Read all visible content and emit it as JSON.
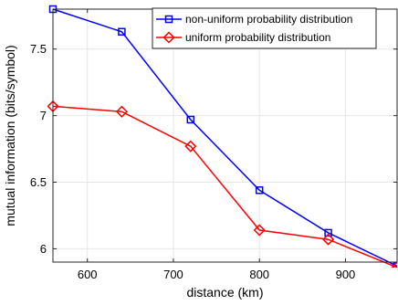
{
  "chart_data": {
    "type": "line",
    "xlabel": "distance (km)",
    "ylabel": "mutual information (bits/symbol)",
    "xlim": [
      560,
      960
    ],
    "ylim": [
      5.9,
      7.8
    ],
    "x_ticks": [
      600,
      700,
      800,
      900
    ],
    "y_ticks": [
      6,
      6.5,
      7,
      7.5
    ],
    "x_tick_labels": [
      "600",
      "700",
      "800",
      "900"
    ],
    "y_tick_labels": [
      "6",
      "6.5",
      "7",
      "7.5"
    ],
    "grid": true,
    "legend_position": "top-right",
    "x": [
      560,
      640,
      720,
      800,
      880,
      960
    ],
    "series": [
      {
        "name": "non-uniform probability distribution",
        "values": [
          7.8,
          7.63,
          6.97,
          6.44,
          6.12,
          5.87
        ],
        "color": "#0000ff",
        "marker": "square"
      },
      {
        "name": "uniform probability distribution",
        "values": [
          7.07,
          7.03,
          6.77,
          6.14,
          6.07,
          5.86
        ],
        "color": "#ff0000",
        "marker": "diamond"
      }
    ]
  }
}
